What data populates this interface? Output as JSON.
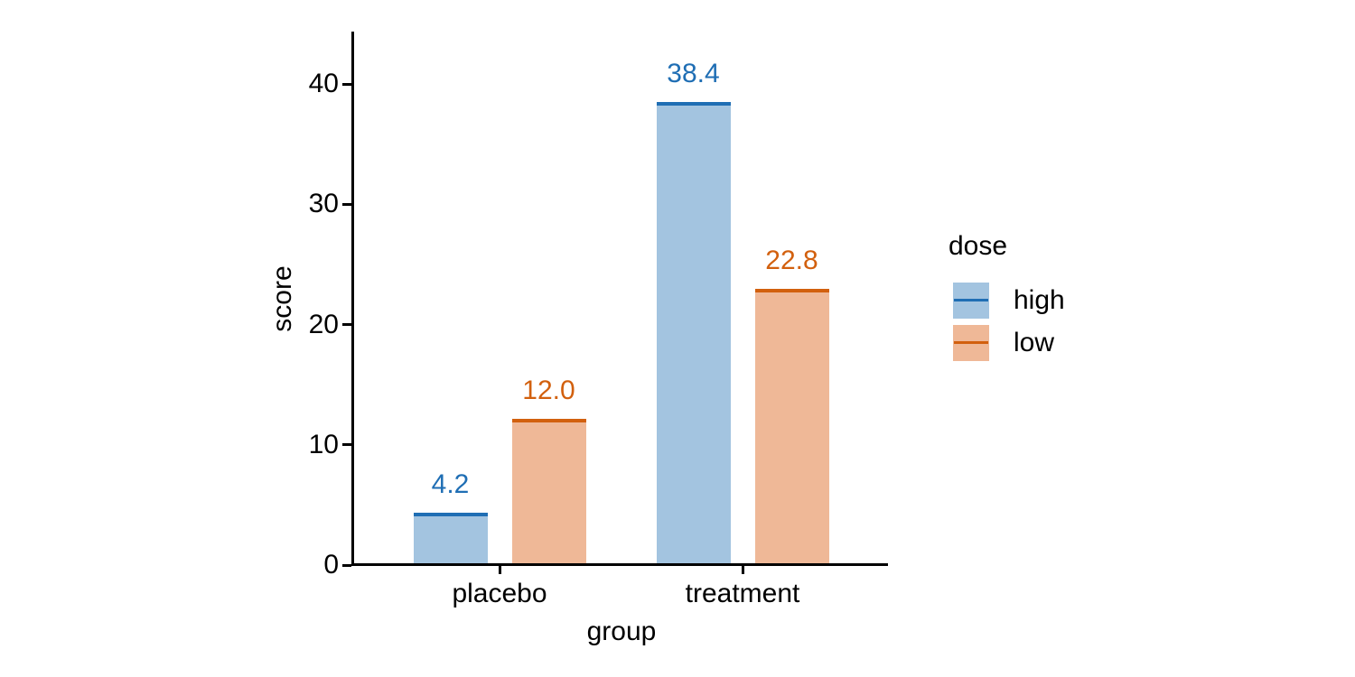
{
  "chart_data": {
    "type": "bar",
    "title": "",
    "xlabel": "group",
    "ylabel": "score",
    "categories": [
      "placebo",
      "treatment"
    ],
    "series": [
      {
        "name": "high",
        "values": [
          4.2,
          38.4
        ],
        "value_labels": [
          "4.2",
          "38.4"
        ],
        "line_color": "#1f6eb4",
        "fill_color": "#a3c4e0"
      },
      {
        "name": "low",
        "values": [
          12.0,
          22.8
        ],
        "value_labels": [
          "12.0",
          "22.8"
        ],
        "line_color": "#d2600e",
        "fill_color": "#efb897"
      }
    ],
    "legend": {
      "title": "dose",
      "position": "right",
      "entries": [
        "high",
        "low"
      ]
    },
    "yticks": [
      0,
      10,
      20,
      30,
      40
    ],
    "ylim": [
      0,
      44.4
    ],
    "grid": false,
    "axis_color": "#000000",
    "text_color": "#000000"
  }
}
